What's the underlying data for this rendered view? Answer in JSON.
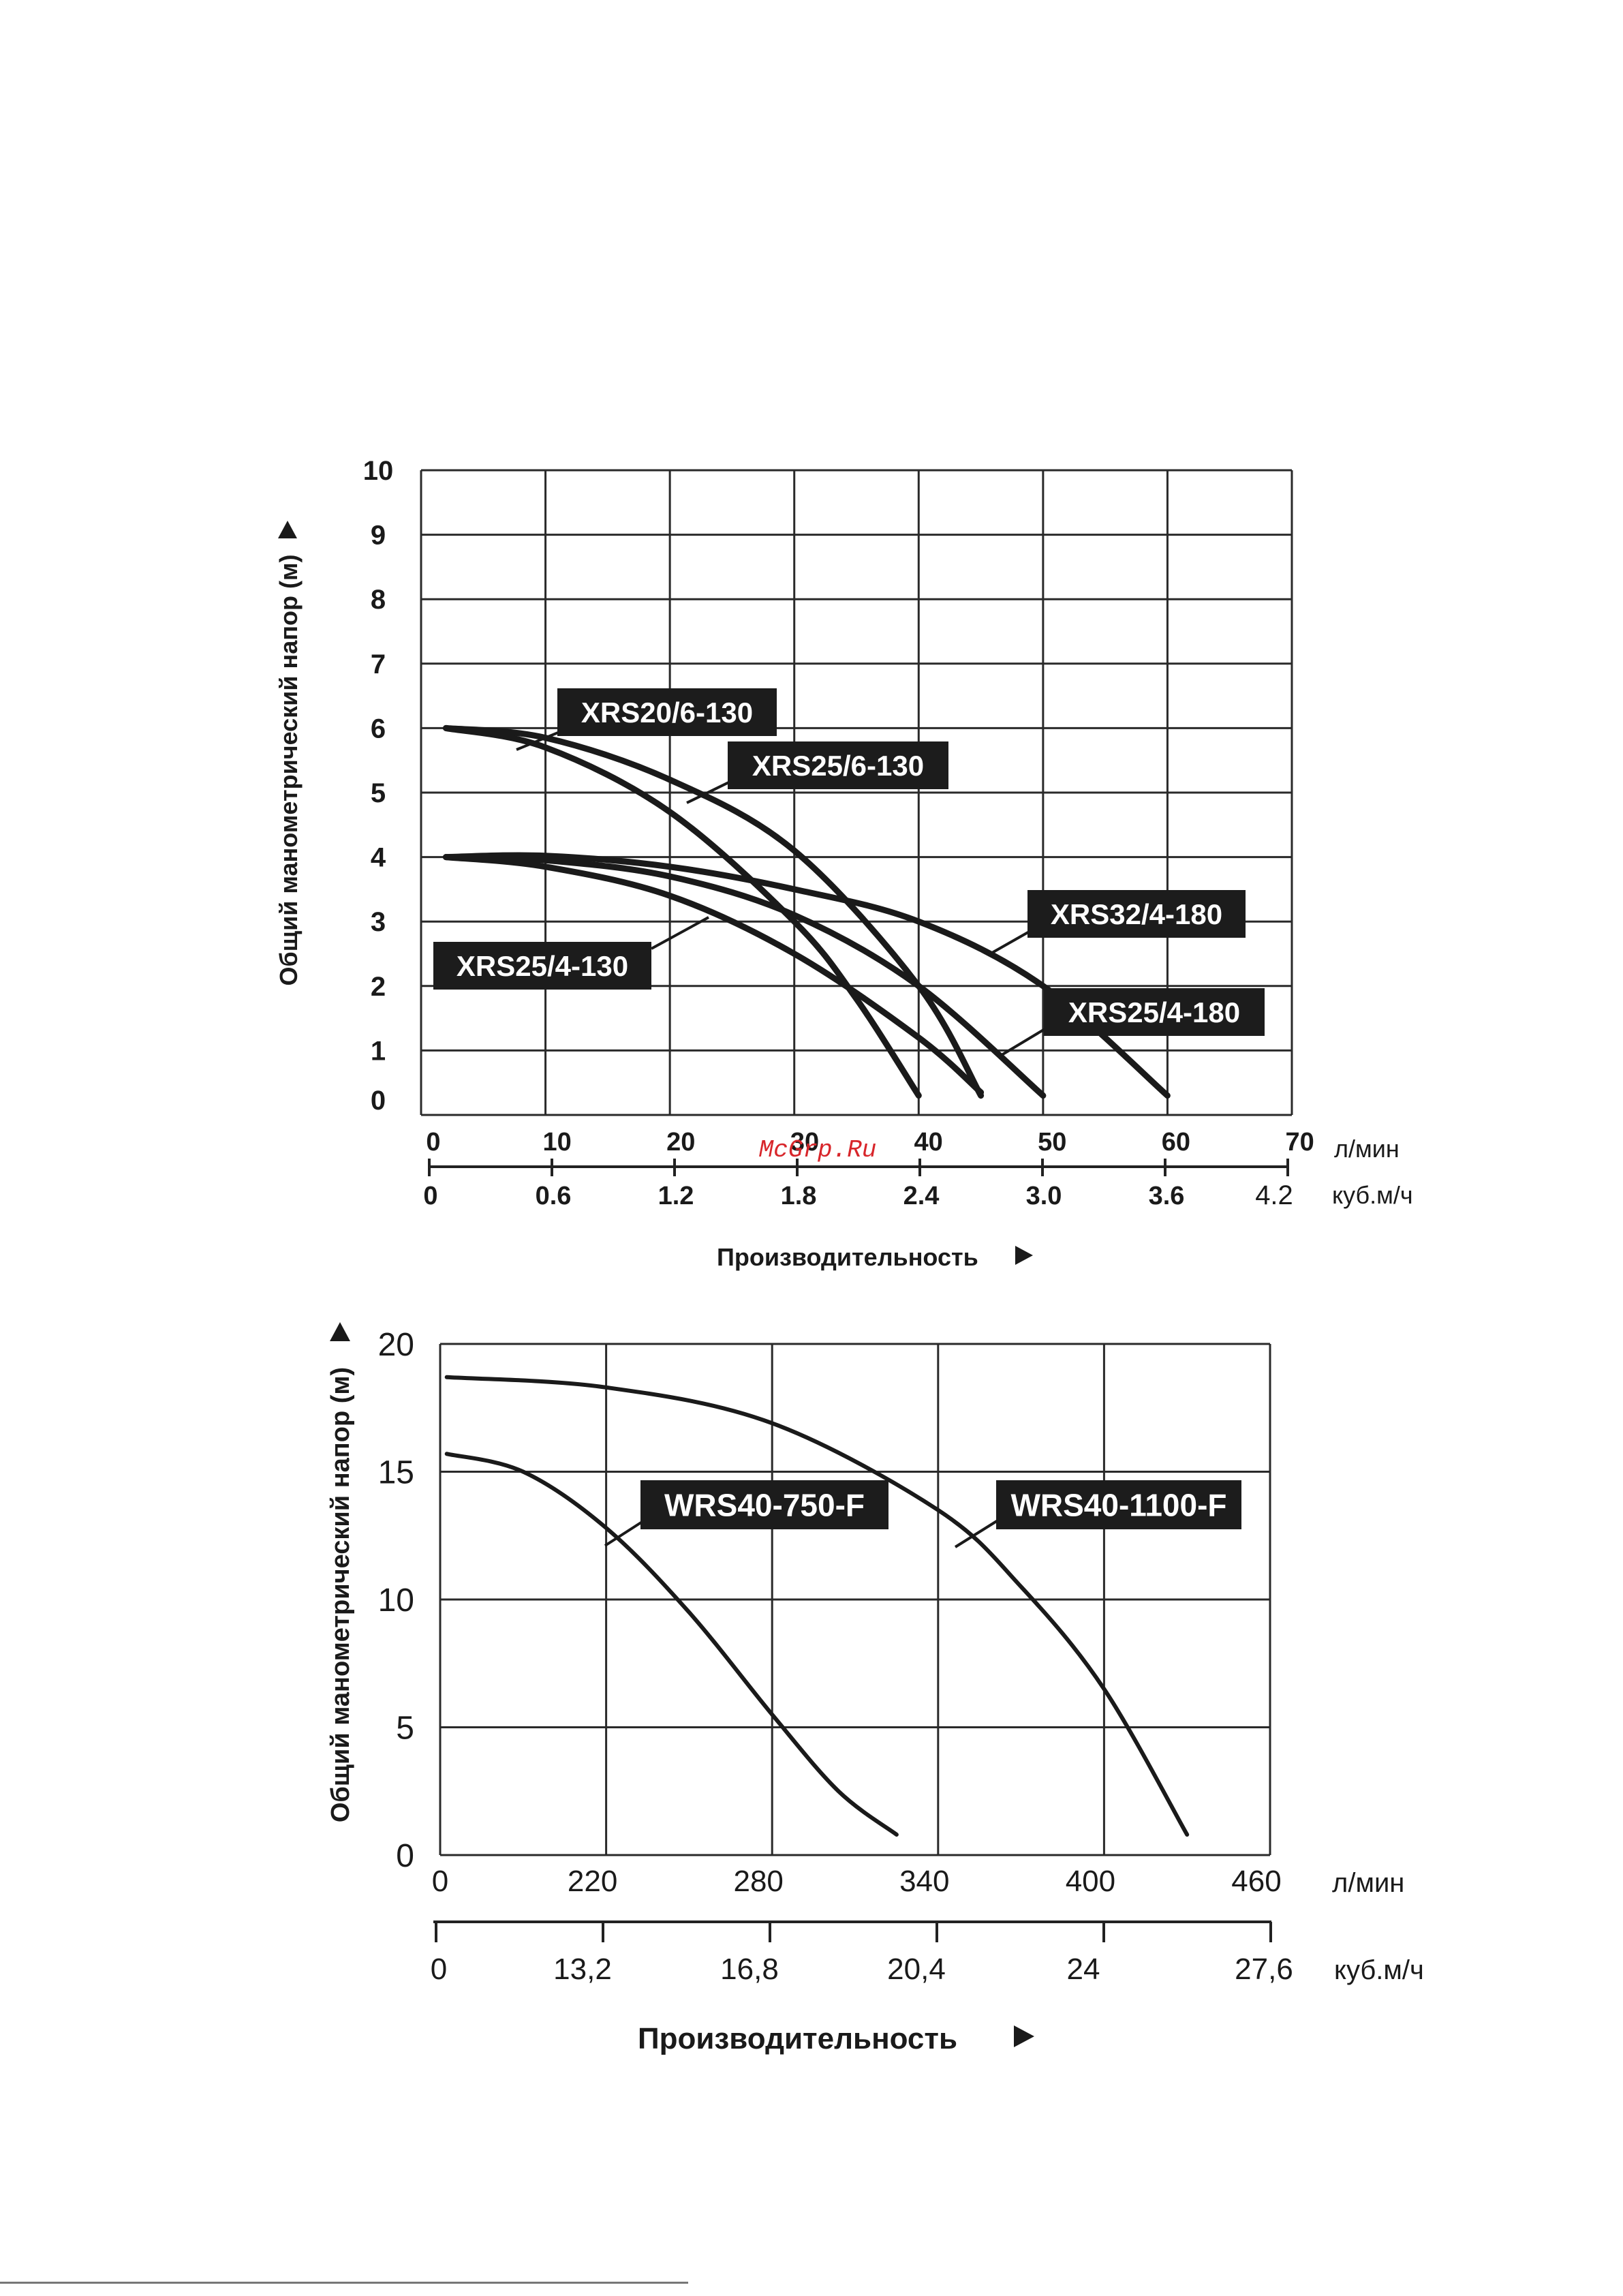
{
  "watermark": "McGrp.Ru",
  "chart_data": [
    {
      "type": "line",
      "ylabel": "Общий манометрический напор (м)",
      "xlabel": "Производительность",
      "x_unit_primary": "л/мин",
      "x_unit_secondary": "куб.м/ч",
      "xlim": [
        0,
        70
      ],
      "ylim": [
        0,
        10
      ],
      "y_ticks": [
        "0",
        "1",
        "2",
        "3",
        "4",
        "5",
        "6",
        "7",
        "8",
        "9",
        "10"
      ],
      "x_ticks_primary": [
        "0",
        "10",
        "20",
        "30",
        "40",
        "50",
        "60",
        "70"
      ],
      "x_ticks_secondary": [
        "0",
        "0.6",
        "1.2",
        "1.8",
        "2.4",
        "3.0",
        "3.6",
        "4.2"
      ],
      "grid": true,
      "series": [
        {
          "name": "XRS20/6-130",
          "x": [
            2,
            10,
            20,
            30,
            35,
            40
          ],
          "y": [
            6.0,
            5.7,
            4.7,
            3.0,
            1.8,
            0.3
          ]
        },
        {
          "name": "XRS25/6-130",
          "x": [
            2,
            10,
            20,
            30,
            40,
            45
          ],
          "y": [
            6.0,
            5.85,
            5.2,
            4.1,
            2.0,
            0.3
          ]
        },
        {
          "name": "XRS25/4-130",
          "x": [
            2,
            10,
            20,
            30,
            40,
            45
          ],
          "y": [
            4.0,
            3.85,
            3.4,
            2.5,
            1.2,
            0.35
          ]
        },
        {
          "name": "XRS25/4-180",
          "x": [
            2,
            10,
            20,
            30,
            40,
            50
          ],
          "y": [
            4.0,
            3.95,
            3.7,
            3.1,
            2.0,
            0.3
          ]
        },
        {
          "name": "XRS32/4-180",
          "x": [
            2,
            10,
            20,
            30,
            40,
            50,
            60
          ],
          "y": [
            4.0,
            4.02,
            3.85,
            3.5,
            3.0,
            2.0,
            0.3
          ]
        }
      ]
    },
    {
      "type": "line",
      "ylabel": "Общий манометрический напор (м)",
      "xlabel": "Производительность",
      "x_unit_primary": "л/мин",
      "x_unit_secondary": "куб.м/ч",
      "ylim": [
        0,
        20
      ],
      "y_ticks": [
        "0",
        "5",
        "10",
        "15",
        "20"
      ],
      "x_ticks_primary": [
        "0",
        "220",
        "280",
        "340",
        "400",
        "460"
      ],
      "x_ticks_secondary": [
        "0",
        "13,2",
        "16,8",
        "20,4",
        "24",
        "27,6"
      ],
      "grid": true,
      "series": [
        {
          "name": "WRS40-750-F",
          "x": [
            0.04,
            0.5,
            1,
            1.5,
            2,
            2.4,
            2.75
          ],
          "y": [
            15.7,
            15.0,
            12.8,
            9.5,
            5.5,
            2.5,
            0.8
          ]
        },
        {
          "name": "WRS40-1100-F",
          "x": [
            0.04,
            1,
            2,
            3,
            3.5,
            4,
            4.5
          ],
          "y": [
            18.7,
            18.3,
            16.9,
            13.5,
            10.5,
            6.5,
            0.8
          ]
        }
      ]
    }
  ]
}
